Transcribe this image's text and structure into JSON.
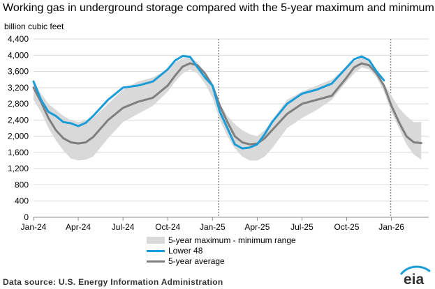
{
  "title": "Working gas in underground  storage compared with the 5-year maximum and minimum",
  "source": "Data source:  U.S. Energy Information Administration",
  "logo": "eia",
  "chart_data": {
    "type": "line",
    "ylabel": "billion cubic feet",
    "ylim": [
      0,
      4400
    ],
    "yticks": [
      0,
      400,
      800,
      1200,
      1600,
      2000,
      2400,
      2800,
      3200,
      3600,
      4000,
      4400
    ],
    "ytick_labels": [
      "0",
      "400",
      "800",
      "1,200",
      "1,600",
      "2,000",
      "2,400",
      "2,800",
      "3,200",
      "3,600",
      "4,000",
      "4,400"
    ],
    "xlim": [
      0,
      26.5
    ],
    "xticks": [
      0,
      3,
      6,
      9,
      12,
      15,
      18,
      21,
      24
    ],
    "xtick_labels": [
      "Jan-24",
      "Apr-24",
      "Jul-24",
      "Oct-24",
      "Jan-25",
      "Apr-25",
      "Jul-25",
      "Oct-25",
      "Jan-26"
    ],
    "dashed_lines_x": [
      12.4,
      23.95
    ],
    "grid": true,
    "band": {
      "name": "5-year maximum - minimum range",
      "color": "#d9d9d9",
      "x": [
        0,
        0.5,
        1,
        1.5,
        2,
        2.5,
        3,
        3.5,
        4,
        5,
        6,
        7,
        8,
        9,
        9.5,
        10,
        10.5,
        11,
        11.5,
        12,
        12.5,
        13,
        13.5,
        14,
        14.5,
        15,
        15.5,
        16,
        17,
        18,
        19,
        20,
        21,
        21.5,
        22,
        22.5,
        23,
        23.5,
        24,
        24.5,
        25,
        25.5,
        26
      ],
      "max": [
        3400,
        3050,
        2800,
        2650,
        2500,
        2400,
        2350,
        2400,
        2450,
        2800,
        3150,
        3350,
        3450,
        3650,
        3820,
        3920,
        3950,
        3820,
        3450,
        3200,
        2800,
        2500,
        2300,
        2150,
        2050,
        2000,
        2150,
        2400,
        2900,
        3100,
        3250,
        3400,
        3700,
        3850,
        3950,
        3850,
        3550,
        3300,
        3000,
        2700,
        2500,
        2350,
        2350
      ],
      "min": [
        2900,
        2600,
        2200,
        1900,
        1650,
        1450,
        1400,
        1420,
        1500,
        1950,
        2350,
        2550,
        2750,
        3100,
        3350,
        3550,
        3650,
        3550,
        3300,
        2950,
        2400,
        2000,
        1700,
        1500,
        1400,
        1400,
        1500,
        1700,
        2200,
        2450,
        2650,
        2900,
        3350,
        3550,
        3700,
        3650,
        3450,
        3100,
        2600,
        2200,
        1800,
        1550,
        1420
      ]
    },
    "series": [
      {
        "name": "5-year average",
        "color": "#7f7f7f",
        "x": [
          0,
          0.5,
          1,
          1.5,
          2,
          2.5,
          3,
          3.5,
          4,
          5,
          6,
          7,
          8,
          9,
          9.5,
          10,
          10.5,
          11,
          11.5,
          12,
          12.5,
          13,
          13.5,
          14,
          14.5,
          15,
          15.5,
          16,
          17,
          18,
          19,
          20,
          21,
          21.5,
          22,
          22.5,
          23,
          23.5,
          24,
          24.5,
          25,
          25.5,
          26
        ],
        "values": [
          3200,
          2850,
          2450,
          2150,
          1950,
          1850,
          1820,
          1850,
          1980,
          2400,
          2700,
          2850,
          2950,
          3250,
          3500,
          3720,
          3800,
          3750,
          3550,
          3250,
          2750,
          2350,
          2000,
          1850,
          1800,
          1820,
          1950,
          2150,
          2550,
          2800,
          2900,
          3000,
          3450,
          3700,
          3800,
          3750,
          3550,
          3250,
          2750,
          2350,
          2000,
          1850,
          1830
        ]
      },
      {
        "name": "Lower 48",
        "color": "#1a9cd8",
        "x": [
          0,
          0.5,
          1,
          1.5,
          2,
          2.5,
          3,
          3.5,
          4,
          5,
          6,
          7,
          8,
          9,
          9.5,
          10,
          10.5,
          11,
          11.5,
          12,
          12.5,
          13,
          13.5,
          14,
          14.5,
          15,
          15.5,
          16,
          17,
          18,
          19,
          20,
          21,
          21.5,
          22,
          22.5,
          23,
          23.5
        ],
        "values": [
          3350,
          2900,
          2600,
          2500,
          2350,
          2320,
          2250,
          2330,
          2500,
          2900,
          3200,
          3250,
          3350,
          3650,
          3870,
          3980,
          3960,
          3700,
          3450,
          3250,
          2600,
          2200,
          1800,
          1700,
          1720,
          1800,
          2050,
          2350,
          2800,
          3050,
          3150,
          3300,
          3700,
          3900,
          3970,
          3880,
          3600,
          3380
        ]
      }
    ],
    "legend": [
      "5-year maximum - minimum range",
      "Lower 48",
      "5-year average"
    ],
    "legend_position": "bottom-center"
  }
}
